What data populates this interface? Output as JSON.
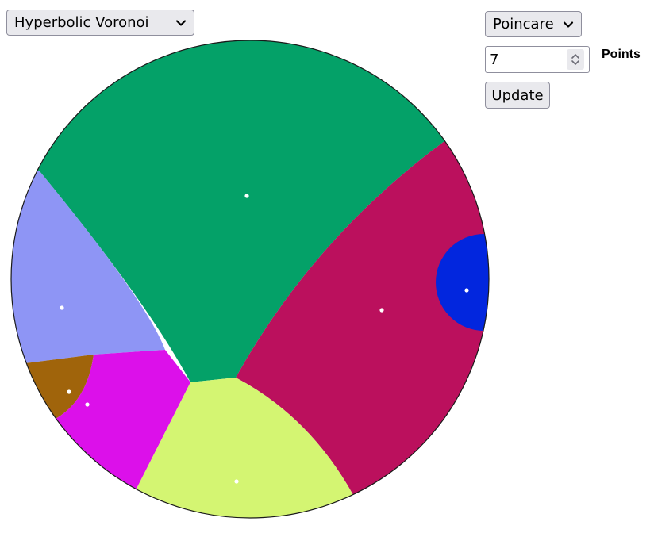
{
  "algorithm_select": {
    "selected": "Hyperbolic Voronoi"
  },
  "model_select": {
    "selected": "Poincare"
  },
  "points_input": {
    "value": "7",
    "label": "Points"
  },
  "update_button": {
    "label": "Update"
  },
  "diagram": {
    "model": "Poincare disk",
    "cells": [
      {
        "name": "green-cell",
        "color": "#04a168"
      },
      {
        "name": "crimson-cell",
        "color": "#bb105d"
      },
      {
        "name": "blue-cell",
        "color": "#0226de"
      },
      {
        "name": "periwinkle-cell",
        "color": "#8e95f5"
      },
      {
        "name": "brown-cell",
        "color": "#a0640b"
      },
      {
        "name": "magenta-cell",
        "color": "#dc10ea"
      },
      {
        "name": "lime-cell",
        "color": "#d4f572"
      }
    ],
    "site_color": "#ffffff"
  }
}
